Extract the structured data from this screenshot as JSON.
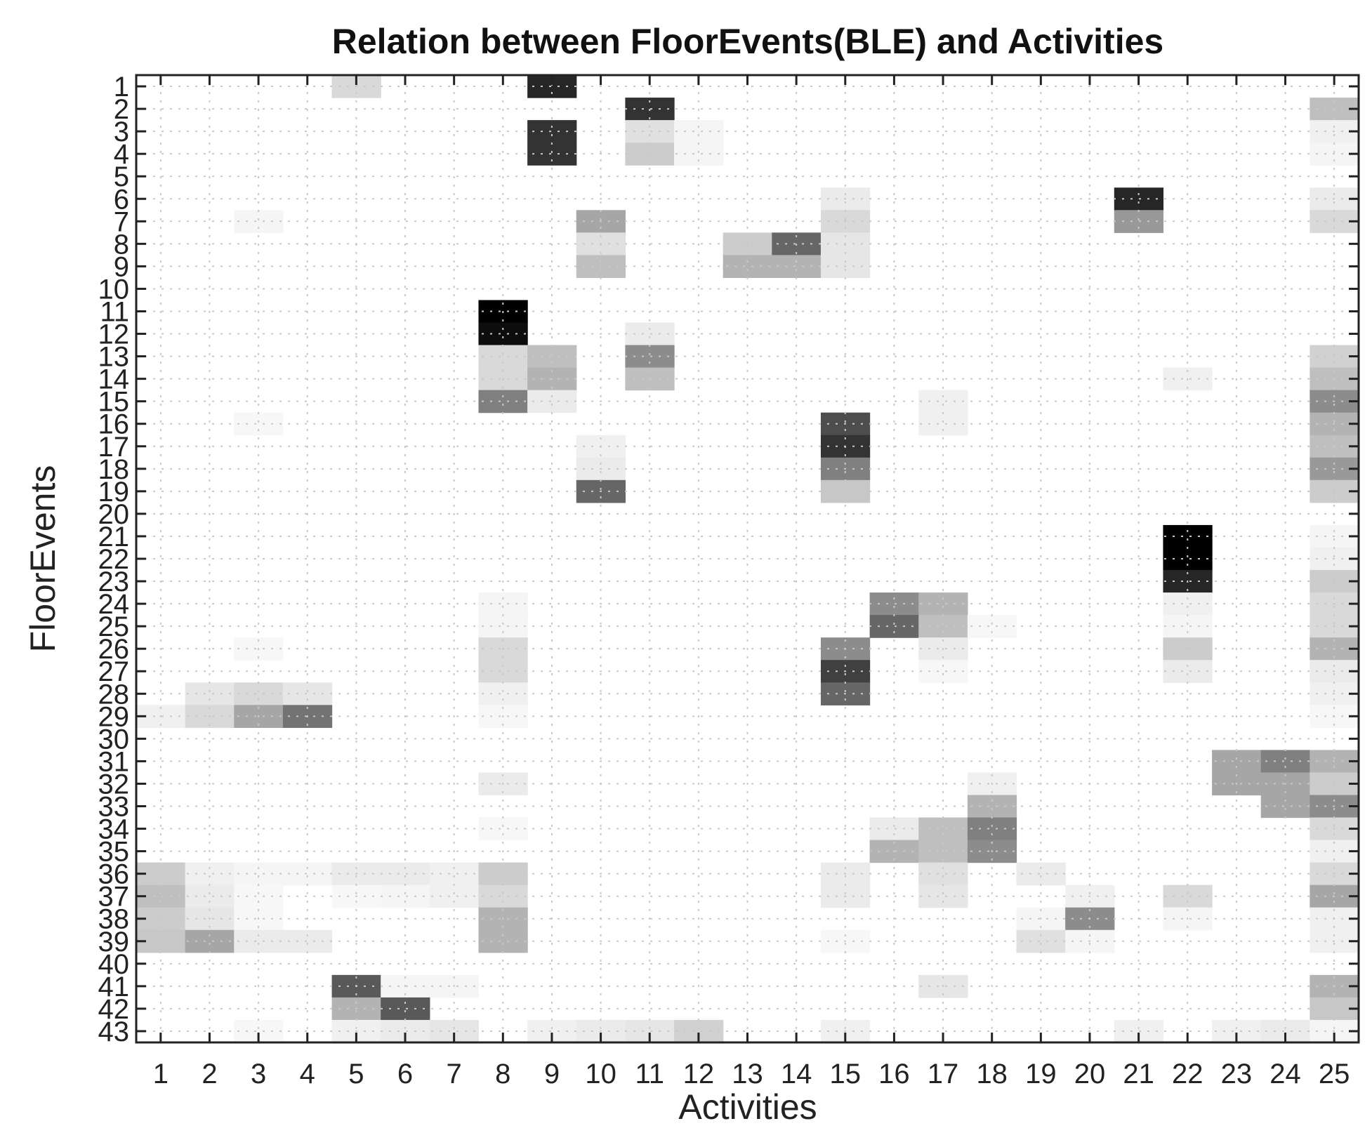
{
  "chart_data": {
    "type": "heatmap",
    "title": "Relation between FloorEvents(BLE) and Activities",
    "xlabel": "Activities",
    "ylabel": "FloorEvents",
    "x_categories": [
      "1",
      "2",
      "3",
      "4",
      "5",
      "6",
      "7",
      "8",
      "9",
      "10",
      "11",
      "12",
      "13",
      "14",
      "15",
      "16",
      "17",
      "18",
      "19",
      "20",
      "21",
      "22",
      "23",
      "24",
      "25"
    ],
    "y_categories": [
      "1",
      "2",
      "3",
      "4",
      "5",
      "6",
      "7",
      "8",
      "9",
      "10",
      "11",
      "12",
      "13",
      "14",
      "15",
      "16",
      "17",
      "18",
      "19",
      "20",
      "21",
      "22",
      "23",
      "24",
      "25",
      "26",
      "27",
      "28",
      "29",
      "30",
      "31",
      "32",
      "33",
      "34",
      "35",
      "36",
      "37",
      "38",
      "39",
      "40",
      "41",
      "42",
      "43"
    ],
    "value_range": [
      0,
      1
    ],
    "colormap": "white-to-black",
    "grid": true,
    "cells": [
      [
        1,
        5,
        0.15
      ],
      [
        1,
        9,
        0.85
      ],
      [
        2,
        11,
        0.8
      ],
      [
        2,
        25,
        0.25
      ],
      [
        3,
        9,
        0.8
      ],
      [
        3,
        11,
        0.12
      ],
      [
        3,
        12,
        0.04
      ],
      [
        3,
        25,
        0.06
      ],
      [
        4,
        9,
        0.8
      ],
      [
        4,
        11,
        0.2
      ],
      [
        4,
        12,
        0.04
      ],
      [
        4,
        25,
        0.04
      ],
      [
        6,
        15,
        0.08
      ],
      [
        6,
        21,
        0.85
      ],
      [
        6,
        25,
        0.08
      ],
      [
        7,
        3,
        0.04
      ],
      [
        7,
        10,
        0.35
      ],
      [
        7,
        15,
        0.15
      ],
      [
        7,
        21,
        0.4
      ],
      [
        7,
        25,
        0.15
      ],
      [
        8,
        10,
        0.12
      ],
      [
        8,
        13,
        0.2
      ],
      [
        8,
        14,
        0.6
      ],
      [
        8,
        15,
        0.1
      ],
      [
        9,
        10,
        0.25
      ],
      [
        9,
        13,
        0.3
      ],
      [
        9,
        14,
        0.3
      ],
      [
        9,
        15,
        0.1
      ],
      [
        11,
        8,
        1.0
      ],
      [
        12,
        8,
        0.95
      ],
      [
        12,
        11,
        0.08
      ],
      [
        13,
        8,
        0.15
      ],
      [
        13,
        9,
        0.25
      ],
      [
        13,
        11,
        0.45
      ],
      [
        13,
        25,
        0.18
      ],
      [
        14,
        8,
        0.15
      ],
      [
        14,
        9,
        0.3
      ],
      [
        14,
        11,
        0.25
      ],
      [
        14,
        22,
        0.06
      ],
      [
        14,
        25,
        0.25
      ],
      [
        15,
        8,
        0.5
      ],
      [
        15,
        9,
        0.08
      ],
      [
        15,
        17,
        0.06
      ],
      [
        15,
        25,
        0.45
      ],
      [
        16,
        3,
        0.03
      ],
      [
        16,
        15,
        0.7
      ],
      [
        16,
        17,
        0.06
      ],
      [
        16,
        25,
        0.3
      ],
      [
        17,
        10,
        0.06
      ],
      [
        17,
        15,
        0.8
      ],
      [
        17,
        25,
        0.25
      ],
      [
        18,
        10,
        0.08
      ],
      [
        18,
        15,
        0.5
      ],
      [
        18,
        25,
        0.4
      ],
      [
        19,
        10,
        0.6
      ],
      [
        19,
        15,
        0.22
      ],
      [
        19,
        25,
        0.2
      ],
      [
        21,
        22,
        1.0
      ],
      [
        21,
        25,
        0.04
      ],
      [
        22,
        22,
        1.0
      ],
      [
        22,
        25,
        0.06
      ],
      [
        23,
        22,
        0.85
      ],
      [
        23,
        25,
        0.2
      ],
      [
        24,
        8,
        0.04
      ],
      [
        24,
        16,
        0.45
      ],
      [
        24,
        17,
        0.3
      ],
      [
        24,
        22,
        0.06
      ],
      [
        24,
        25,
        0.15
      ],
      [
        25,
        8,
        0.04
      ],
      [
        25,
        16,
        0.6
      ],
      [
        25,
        17,
        0.25
      ],
      [
        25,
        18,
        0.03
      ],
      [
        25,
        22,
        0.04
      ],
      [
        25,
        25,
        0.15
      ],
      [
        26,
        3,
        0.03
      ],
      [
        26,
        8,
        0.15
      ],
      [
        26,
        15,
        0.45
      ],
      [
        26,
        17,
        0.08
      ],
      [
        26,
        22,
        0.2
      ],
      [
        26,
        25,
        0.3
      ],
      [
        27,
        8,
        0.15
      ],
      [
        27,
        15,
        0.75
      ],
      [
        27,
        17,
        0.03
      ],
      [
        27,
        22,
        0.08
      ],
      [
        27,
        25,
        0.08
      ],
      [
        28,
        2,
        0.1
      ],
      [
        28,
        3,
        0.15
      ],
      [
        28,
        4,
        0.1
      ],
      [
        28,
        8,
        0.06
      ],
      [
        28,
        15,
        0.6
      ],
      [
        28,
        25,
        0.06
      ],
      [
        29,
        1,
        0.06
      ],
      [
        29,
        2,
        0.15
      ],
      [
        29,
        3,
        0.35
      ],
      [
        29,
        4,
        0.55
      ],
      [
        29,
        8,
        0.03
      ],
      [
        29,
        25,
        0.03
      ],
      [
        31,
        23,
        0.35
      ],
      [
        31,
        24,
        0.5
      ],
      [
        31,
        25,
        0.3
      ],
      [
        32,
        8,
        0.08
      ],
      [
        32,
        18,
        0.06
      ],
      [
        32,
        23,
        0.35
      ],
      [
        32,
        24,
        0.35
      ],
      [
        32,
        25,
        0.2
      ],
      [
        33,
        18,
        0.3
      ],
      [
        33,
        24,
        0.35
      ],
      [
        33,
        25,
        0.45
      ],
      [
        34,
        8,
        0.03
      ],
      [
        34,
        16,
        0.08
      ],
      [
        34,
        17,
        0.25
      ],
      [
        34,
        18,
        0.5
      ],
      [
        34,
        25,
        0.15
      ],
      [
        35,
        16,
        0.3
      ],
      [
        35,
        17,
        0.25
      ],
      [
        35,
        18,
        0.45
      ],
      [
        35,
        25,
        0.06
      ],
      [
        36,
        1,
        0.2
      ],
      [
        36,
        2,
        0.06
      ],
      [
        36,
        3,
        0.04
      ],
      [
        36,
        4,
        0.04
      ],
      [
        36,
        5,
        0.08
      ],
      [
        36,
        6,
        0.08
      ],
      [
        36,
        7,
        0.06
      ],
      [
        36,
        8,
        0.2
      ],
      [
        36,
        15,
        0.08
      ],
      [
        36,
        17,
        0.12
      ],
      [
        36,
        19,
        0.08
      ],
      [
        36,
        25,
        0.15
      ],
      [
        37,
        1,
        0.25
      ],
      [
        37,
        2,
        0.08
      ],
      [
        37,
        3,
        0.03
      ],
      [
        37,
        5,
        0.03
      ],
      [
        37,
        6,
        0.04
      ],
      [
        37,
        7,
        0.06
      ],
      [
        37,
        8,
        0.15
      ],
      [
        37,
        15,
        0.08
      ],
      [
        37,
        17,
        0.1
      ],
      [
        37,
        20,
        0.06
      ],
      [
        37,
        22,
        0.15
      ],
      [
        37,
        25,
        0.35
      ],
      [
        38,
        1,
        0.2
      ],
      [
        38,
        2,
        0.1
      ],
      [
        38,
        3,
        0.03
      ],
      [
        38,
        8,
        0.3
      ],
      [
        38,
        19,
        0.04
      ],
      [
        38,
        20,
        0.45
      ],
      [
        38,
        22,
        0.04
      ],
      [
        38,
        25,
        0.06
      ],
      [
        39,
        1,
        0.22
      ],
      [
        39,
        2,
        0.35
      ],
      [
        39,
        3,
        0.08
      ],
      [
        39,
        4,
        0.08
      ],
      [
        39,
        8,
        0.3
      ],
      [
        39,
        15,
        0.03
      ],
      [
        39,
        19,
        0.12
      ],
      [
        39,
        20,
        0.04
      ],
      [
        39,
        25,
        0.06
      ],
      [
        41,
        5,
        0.65
      ],
      [
        41,
        6,
        0.04
      ],
      [
        41,
        7,
        0.04
      ],
      [
        41,
        17,
        0.1
      ],
      [
        41,
        25,
        0.3
      ],
      [
        42,
        5,
        0.3
      ],
      [
        42,
        6,
        0.65
      ],
      [
        42,
        25,
        0.22
      ],
      [
        43,
        3,
        0.03
      ],
      [
        43,
        5,
        0.06
      ],
      [
        43,
        6,
        0.08
      ],
      [
        43,
        7,
        0.1
      ],
      [
        43,
        9,
        0.06
      ],
      [
        43,
        10,
        0.08
      ],
      [
        43,
        11,
        0.1
      ],
      [
        43,
        12,
        0.18
      ],
      [
        43,
        15,
        0.06
      ],
      [
        43,
        21,
        0.06
      ],
      [
        43,
        23,
        0.06
      ],
      [
        43,
        24,
        0.08
      ],
      [
        43,
        25,
        0.04
      ]
    ]
  }
}
